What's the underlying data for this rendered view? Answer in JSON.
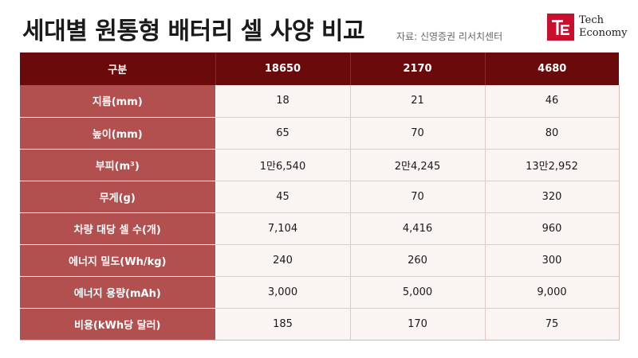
{
  "title": "세대별 원통형 배터리 셀 사양 비교",
  "source": "자료: 신영증권 리서치센터",
  "logo": {
    "line1": "Tech",
    "line2": "Economy",
    "mark_color": "#c8102e"
  },
  "table": {
    "header": [
      "구분",
      "18650",
      "2170",
      "4680"
    ],
    "rows": [
      {
        "label": "지름(mm)",
        "values": [
          "18",
          "21",
          "46"
        ]
      },
      {
        "label": "높이(mm)",
        "values": [
          "65",
          "70",
          "80"
        ]
      },
      {
        "label": "부피(m³)",
        "values": [
          "1만6,540",
          "2만4,245",
          "13만2,952"
        ]
      },
      {
        "label": "무게(g)",
        "values": [
          "45",
          "70",
          "320"
        ]
      },
      {
        "label": "차량 대당 셀 수(개)",
        "values": [
          "7,104",
          "4,416",
          "960"
        ]
      },
      {
        "label": "에너지 밀도(Wh/kg)",
        "values": [
          "240",
          "260",
          "300"
        ]
      },
      {
        "label": "에너지 용량(mAh)",
        "values": [
          "3,000",
          "5,000",
          "9,000"
        ]
      },
      {
        "label": "비용(kWh당 달러)",
        "values": [
          "185",
          "170",
          "75"
        ]
      }
    ]
  },
  "colors": {
    "header_bg": "#6b0a0a",
    "row_label_bg": "#b24f4f",
    "cell_bg": "#faf4f3"
  }
}
